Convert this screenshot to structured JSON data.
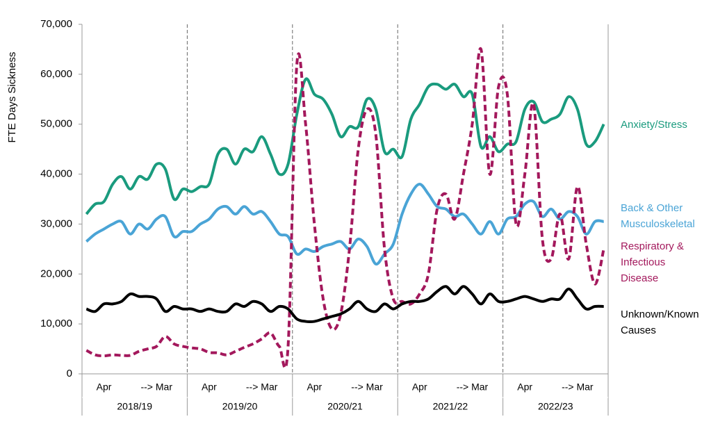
{
  "chart_data": {
    "type": "line",
    "y_label": "FTE Days Sickness",
    "categories": [
      null,
      null,
      "Apr",
      null,
      null,
      null,
      null,
      null,
      "--> Mar",
      null,
      null,
      null,
      null,
      null,
      "Apr",
      null,
      null,
      null,
      null,
      null,
      "--> Mar",
      null,
      null,
      null,
      null,
      null,
      "Apr",
      null,
      null,
      null,
      null,
      null,
      "--> Mar",
      null,
      null,
      null,
      null,
      null,
      "Apr",
      null,
      null,
      null,
      null,
      null,
      "--> Mar",
      null,
      null,
      null,
      null,
      null,
      "Apr",
      null,
      null,
      null,
      null,
      null,
      "--> Mar",
      null,
      null,
      null
    ],
    "groups": [
      "2018/19",
      "2019/20",
      "2020/21",
      "2021/22",
      "2022/23"
    ],
    "ylim": [
      0,
      70000
    ],
    "yticks": [
      0,
      {
        "value": 10000,
        "label": "10,000"
      },
      {
        "value": 20000,
        "label": "20,000"
      },
      {
        "value": 30000,
        "label": "30,000"
      },
      {
        "value": 40000,
        "label": "40,000"
      },
      {
        "value": 50000,
        "label": "50,000"
      },
      {
        "value": 60000,
        "label": "60,000"
      },
      {
        "value": 70000,
        "label": "70,000"
      }
    ],
    "legend": "right",
    "series": [
      {
        "name": "Anxiety/Stress",
        "color": "#1a9b7e",
        "dash": false,
        "values": [
          32000,
          34000,
          34500,
          38000,
          39500,
          37000,
          39500,
          39000,
          42000,
          41000,
          35000,
          37000,
          36500,
          37500,
          38000,
          44000,
          45000,
          42000,
          45000,
          44500,
          47500,
          44000,
          40000,
          42000,
          52000,
          59000,
          56000,
          55000,
          52000,
          47500,
          49500,
          49500,
          55000,
          53000,
          44500,
          45000,
          43500,
          51000,
          54000,
          57500,
          58000,
          57000,
          58000,
          55500,
          56000,
          45500,
          47500,
          44500,
          46000,
          46500,
          53000,
          54500,
          50500,
          51000,
          52000,
          55500,
          53000,
          46000,
          46500,
          50000
        ]
      },
      {
        "name": "Back & Other Musculoskeletal",
        "color": "#4aa4d6",
        "dash": false,
        "values": [
          26500,
          28000,
          29000,
          30000,
          30500,
          28000,
          30000,
          29000,
          31000,
          31500,
          27500,
          28500,
          28500,
          30000,
          31000,
          33000,
          33500,
          32000,
          33500,
          32000,
          32500,
          30500,
          28000,
          27500,
          24000,
          25000,
          24500,
          25500,
          26000,
          26500,
          25000,
          27000,
          25500,
          22000,
          24000,
          26000,
          32000,
          36000,
          38000,
          36000,
          33500,
          33000,
          31500,
          32000,
          30000,
          28000,
          30500,
          28000,
          31000,
          31500,
          34000,
          34500,
          31500,
          33000,
          31000,
          32500,
          31500,
          28000,
          30500,
          30500
        ]
      },
      {
        "name": "Respiratory & Infectious Disease",
        "color": "#a3185c",
        "dash": true,
        "values": [
          4700,
          3800,
          3600,
          3800,
          3700,
          3700,
          4500,
          5000,
          5500,
          7500,
          6000,
          5500,
          5200,
          5000,
          4300,
          4200,
          3800,
          4500,
          5300,
          6000,
          7000,
          8200,
          5500,
          5500,
          62000,
          50000,
          30000,
          15000,
          9000,
          12000,
          25000,
          45000,
          53000,
          48000,
          25000,
          15000,
          14500,
          14000,
          16000,
          20000,
          33000,
          36000,
          31000,
          40000,
          50000,
          65000,
          40000,
          57500,
          56000,
          30000,
          40000,
          54000,
          27000,
          23000,
          32000,
          23000,
          37500,
          26000,
          18000,
          25000
        ]
      },
      {
        "name": "Unknown/Known Causes",
        "color": "#000000",
        "dash": false,
        "values": [
          13000,
          12500,
          14000,
          14000,
          14500,
          16000,
          15500,
          15500,
          15000,
          12500,
          13500,
          13000,
          13000,
          12500,
          13000,
          12500,
          12500,
          14000,
          13500,
          14500,
          14000,
          12500,
          13500,
          13000,
          11000,
          10500,
          10500,
          11000,
          11500,
          12000,
          13000,
          14500,
          13000,
          12500,
          14000,
          13000,
          14000,
          14500,
          14500,
          15000,
          16500,
          17500,
          16000,
          17500,
          16000,
          14000,
          16000,
          14500,
          14500,
          15000,
          15500,
          15000,
          14500,
          15000,
          15000,
          17000,
          15000,
          13000,
          13500,
          13500
        ]
      }
    ]
  }
}
